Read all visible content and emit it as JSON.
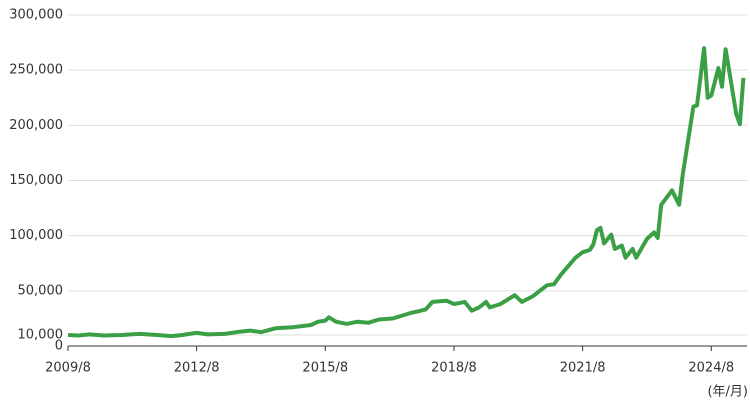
{
  "chart_data": {
    "type": "line",
    "x_unit_label": "(年/月)",
    "x": [
      "2009/8",
      "2009/11",
      "2010/2",
      "2010/6",
      "2010/11",
      "2011/4",
      "2011/9",
      "2012/1",
      "2012/4",
      "2012/8",
      "2012/11",
      "2013/4",
      "2013/8",
      "2013/11",
      "2014/2",
      "2014/6",
      "2014/11",
      "2015/4",
      "2015/6",
      "2015/8",
      "2015/9",
      "2015/11",
      "2016/2",
      "2016/5",
      "2016/8",
      "2016/11",
      "2017/3",
      "2017/8",
      "2017/12",
      "2018/2",
      "2018/6",
      "2018/8",
      "2018/11",
      "2019/1",
      "2019/3",
      "2019/5",
      "2019/6",
      "2019/9",
      "2020/1",
      "2020/3",
      "2020/6",
      "2020/10",
      "2020/12",
      "2021/2",
      "2021/6",
      "2021/8",
      "2021/10",
      "2021/11",
      "2021/12",
      "2022/1",
      "2022/2",
      "2022/4",
      "2022/5",
      "2022/7",
      "2022/8",
      "2022/10",
      "2022/11",
      "2023/2",
      "2023/4",
      "2023/5",
      "2023/6",
      "2023/9",
      "2023/11",
      "2023/12",
      "2024/3",
      "2024/4",
      "2024/6",
      "2024/7",
      "2024/8",
      "2024/10",
      "2024/11",
      "2024/12",
      "2025/1",
      "2025/3",
      "2025/4",
      "2025/5"
    ],
    "series": [
      {
        "color": "#3a9f45",
        "values": [
          10000,
          9500,
          10500,
          9500,
          10000,
          11000,
          10000,
          9000,
          10000,
          12000,
          10500,
          11000,
          13000,
          14000,
          12500,
          16000,
          17000,
          19000,
          22000,
          23000,
          26000,
          22000,
          20000,
          22000,
          21000,
          24000,
          25000,
          30000,
          33000,
          40000,
          41000,
          38000,
          40000,
          32000,
          35000,
          40000,
          35000,
          38000,
          46000,
          40000,
          45000,
          55000,
          56000,
          65000,
          80000,
          85000,
          87000,
          92000,
          105000,
          107000,
          93000,
          101000,
          88000,
          91000,
          80000,
          88000,
          80000,
          97000,
          103000,
          98000,
          128000,
          141000,
          128000,
          155000,
          217000,
          218000,
          270000,
          225000,
          227000,
          252000,
          235000,
          269000,
          250000,
          210000,
          201000,
          243000
        ]
      }
    ],
    "xlim": [
      "2009/8",
      "2025/6"
    ],
    "xticks": [
      "2009/8",
      "2012/8",
      "2015/8",
      "2018/8",
      "2021/8",
      "2024/8"
    ],
    "ylim": [
      0,
      300000
    ],
    "yticks": [
      0,
      {
        "value": 10000,
        "label": "10,000"
      },
      {
        "value": 50000,
        "label": "50,000"
      },
      {
        "value": 100000,
        "label": "100,000"
      },
      {
        "value": 150000,
        "label": "150,000"
      },
      {
        "value": 200000,
        "label": "200,000"
      },
      {
        "value": 250000,
        "label": "250,000"
      },
      {
        "value": 300000,
        "label": "300,000"
      }
    ],
    "grid": true
  }
}
